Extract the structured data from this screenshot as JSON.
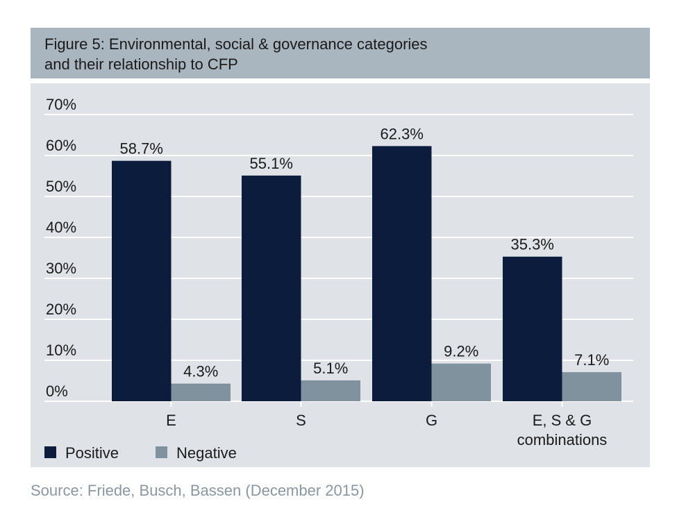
{
  "chart_data": {
    "type": "bar",
    "title": "Figure 5: Environmental, social & governance categories",
    "subtitle": "and their relationship to CFP",
    "categories": [
      "E",
      "S",
      "G",
      "E, S & G combinations"
    ],
    "series": [
      {
        "name": "Positive",
        "values": [
          58.7,
          55.1,
          62.3,
          35.3
        ],
        "color": "#0b1c3d"
      },
      {
        "name": "Negative",
        "values": [
          4.3,
          5.1,
          9.2,
          7.1
        ],
        "color": "#7f929e"
      }
    ],
    "data_labels": [
      [
        "58.7%",
        "55.1%",
        "62.3%",
        "35.3%"
      ],
      [
        "4.3%",
        "5.1%",
        "9.2%",
        "7.1%"
      ]
    ],
    "yticks": [
      "0%",
      "10%",
      "20%",
      "30%",
      "40%",
      "50%",
      "60%",
      "70%"
    ],
    "ylim": [
      0,
      70
    ],
    "xlabel": "",
    "ylabel": "",
    "grid": true,
    "legend": "bottom-left",
    "source": "Source: Friede, Busch, Bassen (December 2015)"
  }
}
